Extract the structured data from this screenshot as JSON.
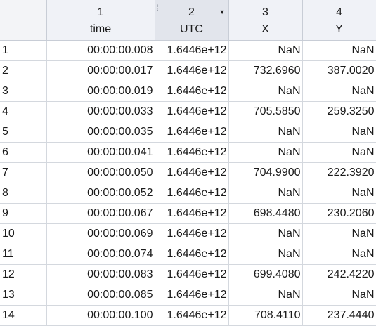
{
  "columns": [
    {
      "number": "1",
      "name": "time"
    },
    {
      "number": "2",
      "name": "UTC"
    },
    {
      "number": "3",
      "name": "X"
    },
    {
      "number": "4",
      "name": "Y"
    }
  ],
  "rows": [
    {
      "n": "1",
      "time": "00:00:00.008",
      "utc": "1.6446e+12",
      "x": "NaN",
      "y": "NaN"
    },
    {
      "n": "2",
      "time": "00:00:00.017",
      "utc": "1.6446e+12",
      "x": "732.6960",
      "y": "387.0020"
    },
    {
      "n": "3",
      "time": "00:00:00.019",
      "utc": "1.6446e+12",
      "x": "NaN",
      "y": "NaN"
    },
    {
      "n": "4",
      "time": "00:00:00.033",
      "utc": "1.6446e+12",
      "x": "705.5850",
      "y": "259.3250"
    },
    {
      "n": "5",
      "time": "00:00:00.035",
      "utc": "1.6446e+12",
      "x": "NaN",
      "y": "NaN"
    },
    {
      "n": "6",
      "time": "00:00:00.041",
      "utc": "1.6446e+12",
      "x": "NaN",
      "y": "NaN"
    },
    {
      "n": "7",
      "time": "00:00:00.050",
      "utc": "1.6446e+12",
      "x": "704.9900",
      "y": "222.3920"
    },
    {
      "n": "8",
      "time": "00:00:00.052",
      "utc": "1.6446e+12",
      "x": "NaN",
      "y": "NaN"
    },
    {
      "n": "9",
      "time": "00:00:00.067",
      "utc": "1.6446e+12",
      "x": "698.4480",
      "y": "230.2060"
    },
    {
      "n": "10",
      "time": "00:00:00.069",
      "utc": "1.6446e+12",
      "x": "NaN",
      "y": "NaN"
    },
    {
      "n": "11",
      "time": "00:00:00.074",
      "utc": "1.6446e+12",
      "x": "NaN",
      "y": "NaN"
    },
    {
      "n": "12",
      "time": "00:00:00.083",
      "utc": "1.6446e+12",
      "x": "699.4080",
      "y": "242.4220"
    },
    {
      "n": "13",
      "time": "00:00:00.085",
      "utc": "1.6446e+12",
      "x": "NaN",
      "y": "NaN"
    },
    {
      "n": "14",
      "time": "00:00:00.100",
      "utc": "1.6446e+12",
      "x": "708.4110",
      "y": "237.4440"
    }
  ],
  "icons": {
    "drag_handle": "drag-handle-icon",
    "dropdown": "chevron-down-icon"
  },
  "colors": {
    "header_bg": "#f0f2f7",
    "selected_header_bg": "#e2e5ec",
    "grid_line": "#d4d8de"
  }
}
